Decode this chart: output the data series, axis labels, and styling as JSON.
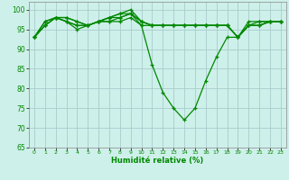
{
  "xlabel": "Humidité relative (%)",
  "xlim": [
    -0.5,
    23.5
  ],
  "ylim": [
    65,
    102
  ],
  "yticks": [
    65,
    70,
    75,
    80,
    85,
    90,
    95,
    100
  ],
  "xticks": [
    0,
    1,
    2,
    3,
    4,
    5,
    6,
    7,
    8,
    9,
    10,
    11,
    12,
    13,
    14,
    15,
    16,
    17,
    18,
    19,
    20,
    21,
    22,
    23
  ],
  "background_color": "#cef0ea",
  "grid_color": "#aacccc",
  "line_color": "#008800",
  "series": [
    [
      93,
      96,
      98,
      97,
      95,
      96,
      97,
      98,
      98,
      99,
      96,
      86,
      79,
      75,
      72,
      75,
      82,
      88,
      93,
      93,
      96,
      97,
      97,
      97
    ],
    [
      93,
      96,
      98,
      97,
      96,
      96,
      97,
      98,
      99,
      99,
      97,
      96,
      96,
      96,
      96,
      96,
      96,
      96,
      96,
      93,
      96,
      96,
      97,
      97
    ],
    [
      93,
      97,
      98,
      98,
      97,
      96,
      97,
      97,
      97,
      98,
      96,
      96,
      96,
      96,
      96,
      96,
      96,
      96,
      96,
      93,
      96,
      96,
      97,
      97
    ],
    [
      93,
      97,
      98,
      98,
      97,
      96,
      97,
      97,
      98,
      99,
      97,
      96,
      96,
      96,
      96,
      96,
      96,
      96,
      96,
      93,
      96,
      96,
      97,
      97
    ],
    [
      93,
      96,
      98,
      97,
      96,
      96,
      97,
      98,
      99,
      100,
      97,
      96,
      96,
      96,
      96,
      96,
      96,
      96,
      96,
      93,
      97,
      97,
      97,
      97
    ]
  ]
}
